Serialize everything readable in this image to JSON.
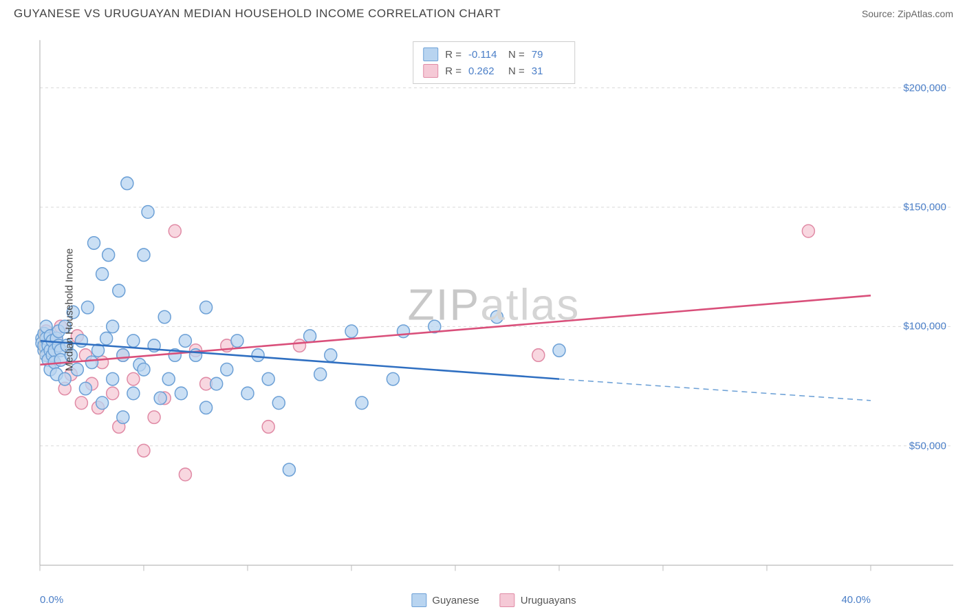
{
  "header": {
    "title": "GUYANESE VS URUGUAYAN MEDIAN HOUSEHOLD INCOME CORRELATION CHART",
    "source": "Source: ZipAtlas.com"
  },
  "watermark": {
    "part1": "ZIP",
    "part2": "atlas"
  },
  "chart": {
    "type": "scatter",
    "background_color": "#ffffff",
    "grid_color": "#d9d9d9",
    "axis_color": "#bbbbbb",
    "tick_color": "#bbbbbb",
    "y_axis_label": "Median Household Income",
    "y_axis_label_color": "#444444",
    "label_fontsize": 15,
    "xlim": [
      0,
      40
    ],
    "ylim": [
      0,
      220000
    ],
    "x_ticks": [
      0,
      5,
      10,
      15,
      20,
      25,
      30,
      35,
      40
    ],
    "x_tick_labels": {
      "0": "0.0%",
      "40": "40.0%"
    },
    "y_ticks": [
      50000,
      100000,
      150000,
      200000
    ],
    "y_tick_labels": {
      "50000": "$50,000",
      "100000": "$100,000",
      "150000": "$150,000",
      "200000": "$200,000"
    },
    "tick_label_color": "#4a7ec7",
    "marker_radius": 9,
    "marker_stroke_width": 1.5,
    "line_width": 2.5,
    "series": {
      "guyanese": {
        "label": "Guyanese",
        "fill_color": "#b8d4f0",
        "stroke_color": "#6ca0d6",
        "line_color": "#2f6fc1",
        "trend": {
          "x1": 0,
          "y1": 94000,
          "x2": 25,
          "y2": 78000,
          "x_solid_end": 25,
          "x_dash_end": 40,
          "y_dash_end": 69000
        },
        "points": [
          [
            0.1,
            95000
          ],
          [
            0.1,
            93000
          ],
          [
            0.2,
            90000
          ],
          [
            0.2,
            97000
          ],
          [
            0.2,
            92000
          ],
          [
            0.3,
            88000
          ],
          [
            0.3,
            95000
          ],
          [
            0.3,
            100000
          ],
          [
            0.4,
            86000
          ],
          [
            0.4,
            92000
          ],
          [
            0.5,
            90000
          ],
          [
            0.5,
            96000
          ],
          [
            0.5,
            82000
          ],
          [
            0.6,
            88000
          ],
          [
            0.6,
            94000
          ],
          [
            0.7,
            90000
          ],
          [
            0.7,
            85000
          ],
          [
            0.8,
            95000
          ],
          [
            0.8,
            80000
          ],
          [
            0.9,
            92000
          ],
          [
            0.9,
            98000
          ],
          [
            1.0,
            90000
          ],
          [
            1.0,
            86000
          ],
          [
            1.2,
            100000
          ],
          [
            1.2,
            78000
          ],
          [
            1.3,
            92000
          ],
          [
            1.5,
            88000
          ],
          [
            1.6,
            106000
          ],
          [
            1.8,
            82000
          ],
          [
            2.0,
            94000
          ],
          [
            2.2,
            74000
          ],
          [
            2.3,
            108000
          ],
          [
            2.5,
            85000
          ],
          [
            2.6,
            135000
          ],
          [
            2.8,
            90000
          ],
          [
            3.0,
            122000
          ],
          [
            3.0,
            68000
          ],
          [
            3.2,
            95000
          ],
          [
            3.3,
            130000
          ],
          [
            3.5,
            78000
          ],
          [
            3.5,
            100000
          ],
          [
            3.8,
            115000
          ],
          [
            4.0,
            62000
          ],
          [
            4.0,
            88000
          ],
          [
            4.2,
            160000
          ],
          [
            4.5,
            72000
          ],
          [
            4.5,
            94000
          ],
          [
            4.8,
            84000
          ],
          [
            5.0,
            82000
          ],
          [
            5.0,
            130000
          ],
          [
            5.2,
            148000
          ],
          [
            5.5,
            92000
          ],
          [
            5.8,
            70000
          ],
          [
            6.0,
            104000
          ],
          [
            6.2,
            78000
          ],
          [
            6.5,
            88000
          ],
          [
            6.8,
            72000
          ],
          [
            7.0,
            94000
          ],
          [
            7.5,
            88000
          ],
          [
            8.0,
            66000
          ],
          [
            8.0,
            108000
          ],
          [
            8.5,
            76000
          ],
          [
            9.0,
            82000
          ],
          [
            9.5,
            94000
          ],
          [
            10.0,
            72000
          ],
          [
            10.5,
            88000
          ],
          [
            11.0,
            78000
          ],
          [
            11.5,
            68000
          ],
          [
            12.0,
            40000
          ],
          [
            13.0,
            96000
          ],
          [
            13.5,
            80000
          ],
          [
            14.0,
            88000
          ],
          [
            15.0,
            98000
          ],
          [
            15.5,
            68000
          ],
          [
            17.0,
            78000
          ],
          [
            17.5,
            98000
          ],
          [
            19.0,
            100000
          ],
          [
            22.0,
            104000
          ],
          [
            25.0,
            90000
          ]
        ]
      },
      "uruguayans": {
        "label": "Uruguayans",
        "fill_color": "#f5c9d6",
        "stroke_color": "#e08aa5",
        "line_color": "#d94f7a",
        "trend": {
          "x1": 0,
          "y1": 84000,
          "x2": 40,
          "y2": 113000
        },
        "points": [
          [
            0.2,
            92000
          ],
          [
            0.3,
            98000
          ],
          [
            0.4,
            88000
          ],
          [
            0.5,
            96000
          ],
          [
            0.6,
            86000
          ],
          [
            0.8,
            94000
          ],
          [
            1.0,
            100000
          ],
          [
            1.2,
            74000
          ],
          [
            1.5,
            80000
          ],
          [
            1.8,
            96000
          ],
          [
            2.0,
            68000
          ],
          [
            2.2,
            88000
          ],
          [
            2.5,
            76000
          ],
          [
            2.8,
            66000
          ],
          [
            3.0,
            85000
          ],
          [
            3.5,
            72000
          ],
          [
            3.8,
            58000
          ],
          [
            4.0,
            88000
          ],
          [
            4.5,
            78000
          ],
          [
            5.0,
            48000
          ],
          [
            5.5,
            62000
          ],
          [
            6.0,
            70000
          ],
          [
            6.5,
            140000
          ],
          [
            7.0,
            38000
          ],
          [
            7.5,
            90000
          ],
          [
            8.0,
            76000
          ],
          [
            9.0,
            92000
          ],
          [
            11.0,
            58000
          ],
          [
            12.5,
            92000
          ],
          [
            24.0,
            88000
          ],
          [
            37.0,
            140000
          ]
        ]
      }
    },
    "stats": [
      {
        "series": "guyanese",
        "R": "-0.114",
        "N": "79"
      },
      {
        "series": "uruguayans",
        "R": "0.262",
        "N": "31"
      }
    ],
    "stats_box": {
      "r_label": "R =",
      "n_label": "N ="
    }
  }
}
